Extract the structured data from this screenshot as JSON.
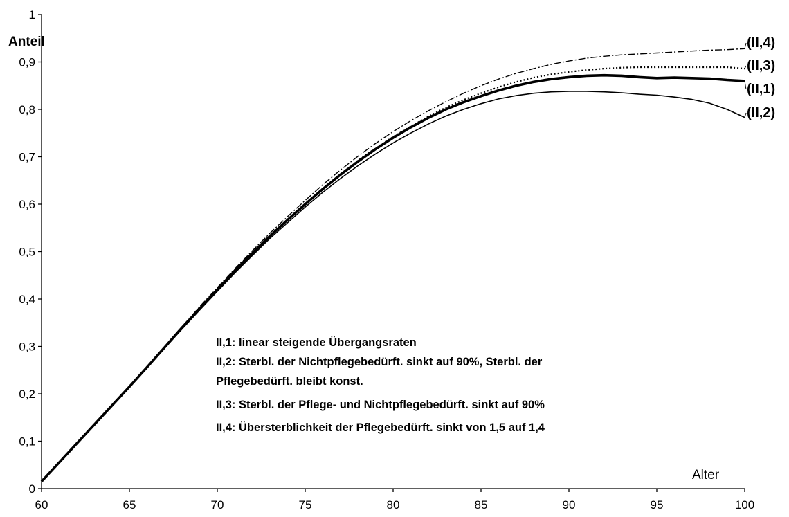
{
  "chart_data": {
    "type": "line",
    "xlabel": "Alter",
    "ylabel": "Anteil",
    "xlim": [
      60,
      100
    ],
    "ylim": [
      0,
      1
    ],
    "xticks": [
      "60",
      "65",
      "70",
      "75",
      "80",
      "85",
      "90",
      "95",
      "100"
    ],
    "yticks": [
      "0",
      "0,1",
      "0,2",
      "0,3",
      "0,4",
      "0,5",
      "0,6",
      "0,7",
      "0,8",
      "0,9",
      "1"
    ],
    "grid": false,
    "x": [
      60,
      61,
      62,
      63,
      64,
      65,
      66,
      67,
      68,
      69,
      70,
      71,
      72,
      73,
      74,
      75,
      76,
      77,
      78,
      79,
      80,
      81,
      82,
      83,
      84,
      85,
      86,
      87,
      88,
      89,
      90,
      91,
      92,
      93,
      94,
      95,
      96,
      97,
      98,
      99,
      100
    ],
    "series": [
      {
        "name": "(II,1)",
        "style": "solid-thick",
        "values": [
          0.015,
          0.055,
          0.095,
          0.135,
          0.175,
          0.215,
          0.256,
          0.298,
          0.34,
          0.38,
          0.42,
          0.46,
          0.497,
          0.533,
          0.567,
          0.6,
          0.632,
          0.662,
          0.69,
          0.716,
          0.74,
          0.762,
          0.782,
          0.8,
          0.815,
          0.828,
          0.84,
          0.85,
          0.858,
          0.864,
          0.868,
          0.871,
          0.872,
          0.871,
          0.868,
          0.866,
          0.867,
          0.866,
          0.865,
          0.862,
          0.86
        ]
      },
      {
        "name": "(II,2)",
        "style": "solid-thin",
        "values": [
          0.015,
          0.055,
          0.095,
          0.135,
          0.175,
          0.215,
          0.255,
          0.296,
          0.337,
          0.377,
          0.416,
          0.455,
          0.492,
          0.528,
          0.561,
          0.594,
          0.625,
          0.654,
          0.681,
          0.706,
          0.729,
          0.75,
          0.769,
          0.786,
          0.8,
          0.812,
          0.822,
          0.829,
          0.834,
          0.837,
          0.838,
          0.838,
          0.837,
          0.835,
          0.832,
          0.83,
          0.826,
          0.821,
          0.813,
          0.8,
          0.783
        ]
      },
      {
        "name": "(II,3)",
        "style": "dotted",
        "values": [
          0.015,
          0.055,
          0.095,
          0.135,
          0.175,
          0.215,
          0.256,
          0.298,
          0.34,
          0.381,
          0.421,
          0.461,
          0.498,
          0.534,
          0.568,
          0.601,
          0.633,
          0.663,
          0.692,
          0.718,
          0.742,
          0.764,
          0.785,
          0.804,
          0.82,
          0.834,
          0.847,
          0.858,
          0.867,
          0.874,
          0.879,
          0.883,
          0.886,
          0.888,
          0.889,
          0.889,
          0.889,
          0.889,
          0.889,
          0.889,
          0.886
        ]
      },
      {
        "name": "(II,4)",
        "style": "dash-dot",
        "values": [
          0.015,
          0.055,
          0.096,
          0.136,
          0.176,
          0.217,
          0.258,
          0.3,
          0.342,
          0.384,
          0.424,
          0.464,
          0.502,
          0.539,
          0.574,
          0.608,
          0.641,
          0.672,
          0.701,
          0.728,
          0.753,
          0.776,
          0.797,
          0.816,
          0.834,
          0.85,
          0.864,
          0.876,
          0.886,
          0.895,
          0.902,
          0.908,
          0.912,
          0.915,
          0.917,
          0.919,
          0.921,
          0.923,
          0.925,
          0.926,
          0.928
        ]
      }
    ],
    "legend_notes": [
      "II,1: linear steigende Übergangsraten",
      "II,2: Sterbl. der Nichtpflegebedürft. sinkt auf 90%, Sterbl. der",
      "Pflegebedürft. bleibt konst.",
      "II,3: Sterbl. der Pflege- und Nichtpflegebedürft. sinkt auf 90%",
      "II,4: Übersterblichkeit der Pflegebedürft. sinkt von 1,5 auf 1,4"
    ]
  }
}
